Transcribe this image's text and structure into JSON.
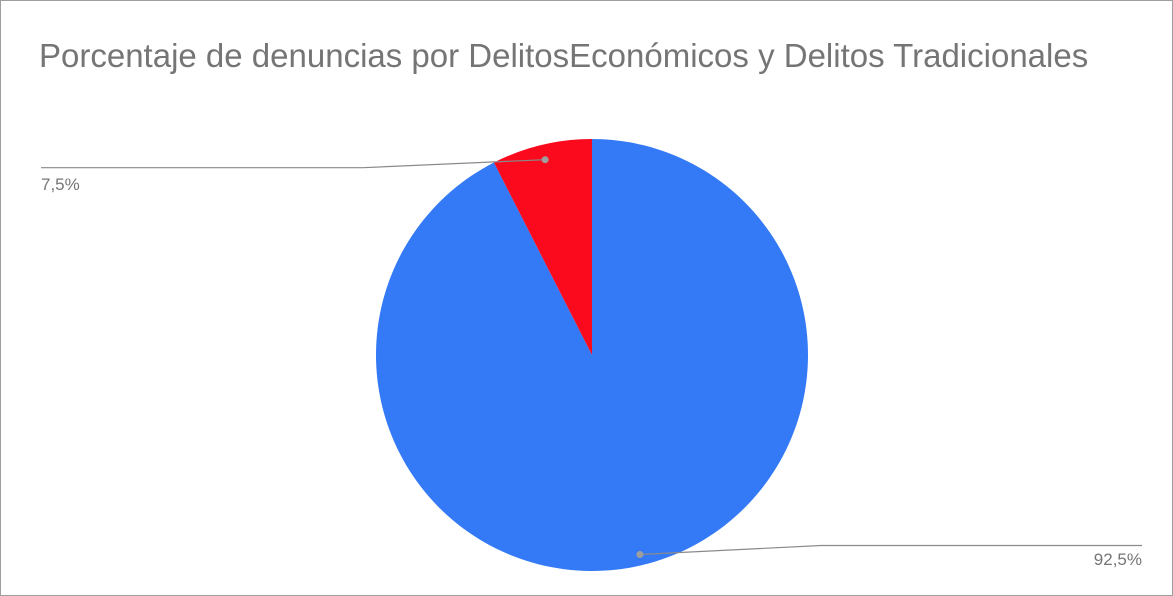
{
  "chart_data": {
    "type": "pie",
    "title": "Porcentaje de denuncias por DelitosEconómicos y Delitos Tradicionales",
    "slices": [
      {
        "value": 92.5,
        "label": "92,5%",
        "color": "#3479f6"
      },
      {
        "value": 7.5,
        "label": "7,5%",
        "color": "#fb0a1e"
      }
    ],
    "start_angle_deg": 0,
    "direction": "clockwise",
    "legend": "none"
  }
}
